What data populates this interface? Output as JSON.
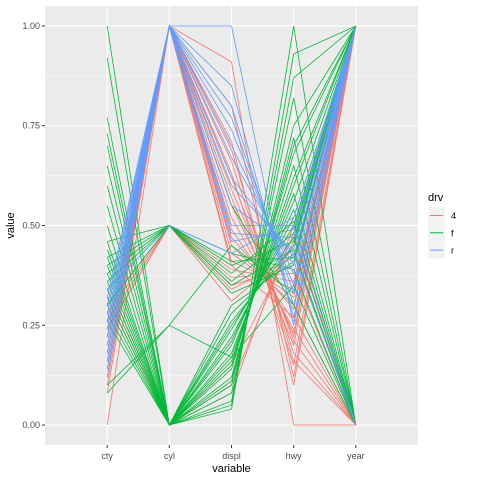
{
  "chart_data": {
    "type": "line",
    "subtype": "parallel-coordinates",
    "xlabel": "variable",
    "ylabel": "value",
    "categories": [
      "cty",
      "cyl",
      "displ",
      "hwy",
      "year"
    ],
    "ylim": [
      -0.05,
      1.05
    ],
    "yticks": [
      "0.00",
      "0.25",
      "0.50",
      "0.75",
      "1.00"
    ],
    "ytick_values": [
      0,
      0.25,
      0.5,
      0.75,
      1
    ],
    "grid": true,
    "legend": {
      "title": "drv",
      "position": "right",
      "entries": [
        {
          "label": "4",
          "color": "#F8766D"
        },
        {
          "label": "f",
          "color": "#00BA38"
        },
        {
          "label": "r",
          "color": "#619CFF"
        }
      ]
    },
    "series": [
      {
        "group": "4",
        "color": "#F8766D",
        "lines": [
          [
            0.0,
            1.0,
            0.91,
            0.0,
            0.0
          ],
          [
            0.08,
            1.0,
            0.8,
            0.12,
            1.0
          ],
          [
            0.1,
            1.0,
            0.71,
            0.1,
            1.0
          ],
          [
            0.12,
            1.0,
            0.66,
            0.18,
            0.0
          ],
          [
            0.12,
            1.0,
            0.63,
            0.15,
            1.0
          ],
          [
            0.14,
            1.0,
            0.57,
            0.2,
            1.0
          ],
          [
            0.14,
            1.0,
            0.62,
            0.21,
            0.0
          ],
          [
            0.16,
            1.0,
            0.55,
            0.23,
            1.0
          ],
          [
            0.16,
            1.0,
            0.52,
            0.24,
            0.0
          ],
          [
            0.18,
            1.0,
            0.49,
            0.26,
            1.0
          ],
          [
            0.18,
            1.0,
            0.47,
            0.29,
            1.0
          ],
          [
            0.2,
            1.0,
            0.45,
            0.3,
            0.0
          ],
          [
            0.2,
            1.0,
            0.43,
            0.32,
            1.0
          ],
          [
            0.22,
            1.0,
            0.41,
            0.34,
            1.0
          ],
          [
            0.22,
            1.0,
            0.4,
            0.27,
            0.0
          ],
          [
            0.24,
            0.5,
            0.39,
            0.36,
            1.0
          ],
          [
            0.24,
            0.5,
            0.37,
            0.38,
            0.0
          ],
          [
            0.26,
            0.5,
            0.35,
            0.4,
            1.0
          ],
          [
            0.28,
            0.5,
            0.34,
            0.42,
            1.0
          ],
          [
            0.3,
            0.5,
            0.31,
            0.44,
            0.0
          ],
          [
            0.32,
            0.0,
            0.15,
            0.46,
            1.0
          ],
          [
            0.34,
            0.0,
            0.1,
            0.48,
            0.0
          ],
          [
            0.36,
            0.0,
            0.08,
            0.5,
            1.0
          ],
          [
            0.3,
            1.0,
            0.69,
            0.16,
            0.0
          ],
          [
            0.12,
            1.0,
            0.59,
            0.22,
            1.0
          ]
        ]
      },
      {
        "group": "f",
        "color": "#00BA38",
        "lines": [
          [
            1.0,
            0.0,
            0.05,
            1.0,
            0.0
          ],
          [
            0.92,
            0.0,
            0.04,
            0.93,
            1.0
          ],
          [
            0.77,
            0.0,
            0.06,
            0.87,
            1.0
          ],
          [
            0.73,
            0.0,
            0.08,
            0.82,
            0.0
          ],
          [
            0.7,
            0.0,
            0.1,
            0.75,
            1.0
          ],
          [
            0.65,
            0.0,
            0.11,
            0.72,
            0.0
          ],
          [
            0.6,
            0.0,
            0.12,
            0.7,
            1.0
          ],
          [
            0.55,
            0.0,
            0.14,
            0.68,
            1.0
          ],
          [
            0.5,
            0.0,
            0.15,
            0.65,
            0.0
          ],
          [
            0.46,
            0.0,
            0.16,
            0.62,
            1.0
          ],
          [
            0.44,
            0.0,
            0.17,
            0.6,
            1.0
          ],
          [
            0.42,
            0.0,
            0.18,
            0.58,
            0.0
          ],
          [
            0.4,
            0.0,
            0.2,
            0.56,
            1.0
          ],
          [
            0.38,
            0.0,
            0.21,
            0.54,
            0.0
          ],
          [
            0.36,
            0.0,
            0.22,
            0.52,
            1.0
          ],
          [
            0.34,
            0.0,
            0.24,
            0.5,
            1.0
          ],
          [
            0.32,
            0.0,
            0.25,
            0.47,
            0.0
          ],
          [
            0.3,
            0.0,
            0.26,
            0.45,
            1.0
          ],
          [
            0.28,
            0.0,
            0.28,
            0.43,
            0.0
          ],
          [
            0.26,
            0.0,
            0.3,
            0.41,
            1.0
          ],
          [
            0.46,
            0.5,
            0.33,
            0.4,
            1.0
          ],
          [
            0.42,
            0.5,
            0.35,
            0.44,
            0.0
          ],
          [
            0.4,
            0.5,
            0.36,
            0.48,
            1.0
          ],
          [
            0.38,
            0.5,
            0.38,
            0.51,
            0.0
          ],
          [
            0.36,
            0.5,
            0.4,
            0.46,
            1.0
          ],
          [
            0.34,
            0.5,
            0.41,
            0.42,
            1.0
          ],
          [
            0.3,
            0.5,
            0.43,
            0.39,
            0.0
          ],
          [
            0.1,
            0.25,
            0.17,
            0.35,
            0.0
          ],
          [
            0.08,
            0.25,
            0.45,
            0.33,
            1.0
          ],
          [
            0.22,
            1.0,
            0.55,
            0.3,
            0.0
          ]
        ]
      },
      {
        "group": "r",
        "color": "#619CFF",
        "lines": [
          [
            0.12,
            1.0,
            1.0,
            0.25,
            1.0
          ],
          [
            0.14,
            1.0,
            0.85,
            0.27,
            1.0
          ],
          [
            0.16,
            1.0,
            0.8,
            0.3,
            1.0
          ],
          [
            0.18,
            1.0,
            0.77,
            0.33,
            1.0
          ],
          [
            0.2,
            1.0,
            0.74,
            0.35,
            1.0
          ],
          [
            0.22,
            1.0,
            0.7,
            0.38,
            1.0
          ],
          [
            0.24,
            1.0,
            0.67,
            0.4,
            1.0
          ],
          [
            0.26,
            1.0,
            0.62,
            0.42,
            1.0
          ],
          [
            0.28,
            1.0,
            0.55,
            0.44,
            1.0
          ],
          [
            0.3,
            1.0,
            0.48,
            0.47,
            1.0
          ],
          [
            0.32,
            1.0,
            0.46,
            0.49,
            1.0
          ],
          [
            0.24,
            1.0,
            0.5,
            0.5,
            0.0
          ],
          [
            0.26,
            1.0,
            0.6,
            0.43,
            0.0
          ],
          [
            0.34,
            0.5,
            0.43,
            0.52,
            1.0
          ]
        ]
      }
    ]
  }
}
